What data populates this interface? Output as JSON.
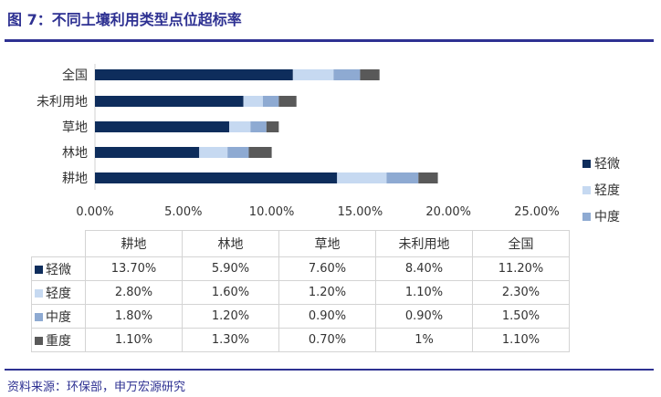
{
  "title": "图 7：不同土壤利用类型点位超标率",
  "source": "资料来源：环保部，申万宏源研究",
  "chart_data": {
    "type": "bar",
    "orientation": "horizontal",
    "stacked": true,
    "categories": [
      "全国",
      "未利用地",
      "草地",
      "林地",
      "耕地"
    ],
    "series": [
      {
        "name": "轻微",
        "color": "#0e2d5c",
        "values": [
          11.2,
          8.4,
          7.6,
          5.9,
          13.7
        ]
      },
      {
        "name": "轻度",
        "color": "#c6d9f1",
        "values": [
          2.3,
          1.1,
          1.2,
          1.6,
          2.8
        ]
      },
      {
        "name": "中度",
        "color": "#8eaad2",
        "values": [
          1.5,
          0.9,
          0.9,
          1.2,
          1.8
        ]
      },
      {
        "name": "重度",
        "color": "#595959",
        "values": [
          1.1,
          1.0,
          0.7,
          1.3,
          1.1
        ]
      }
    ],
    "xlim": [
      0,
      25
    ],
    "xticks": [
      "0.00%",
      "5.00%",
      "10.00%",
      "15.00%",
      "20.00%",
      "25.00%"
    ],
    "legend": "right",
    "grid": false
  },
  "table": {
    "headers": [
      "耕地",
      "林地",
      "草地",
      "未利用地",
      "全国"
    ],
    "rows": [
      {
        "label": "轻微",
        "cells": [
          "13.70%",
          "5.90%",
          "7.60%",
          "8.40%",
          "11.20%"
        ]
      },
      {
        "label": "轻度",
        "cells": [
          "2.80%",
          "1.60%",
          "1.20%",
          "1.10%",
          "2.30%"
        ]
      },
      {
        "label": "中度",
        "cells": [
          "1.80%",
          "1.20%",
          "0.90%",
          "0.90%",
          "1.50%"
        ]
      },
      {
        "label": "重度",
        "cells": [
          "1.10%",
          "1.30%",
          "0.70%",
          "1%",
          "1.10%"
        ]
      }
    ]
  }
}
